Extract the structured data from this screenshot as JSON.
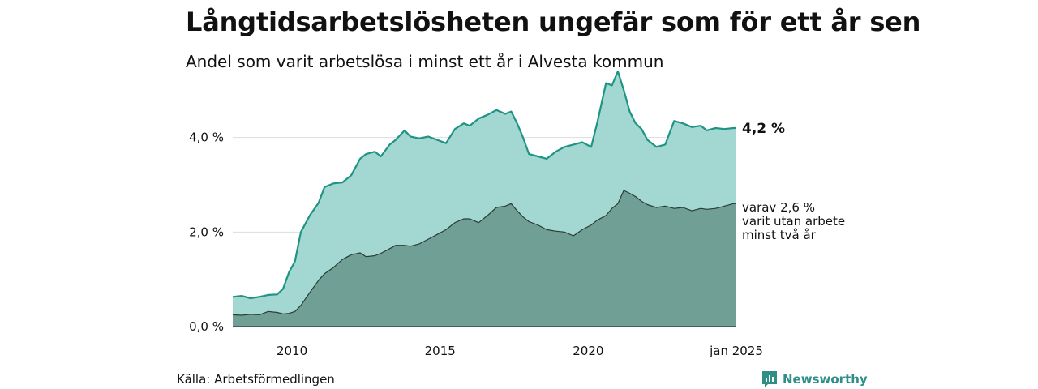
{
  "title": "Långtidsarbetslösheten ungefär som för ett år sen",
  "subtitle": "Andel som varit arbetslösa i minst ett år i Alvesta kommun",
  "source": "Källa: Arbetsförmedlingen",
  "logo": {
    "text": "Newsworthy",
    "icon": "newsworthy-chart-icon"
  },
  "colors": {
    "total_line": "#1f9485",
    "total_fill": "#a3d8d2",
    "sub_fill": "#6f9f95",
    "sub_line": "#2b3b35",
    "grid": "#dddddd",
    "brand": "#2f8f86"
  },
  "chart_data": {
    "type": "area",
    "title": "Långtidsarbetslösheten ungefär som för ett år sen",
    "subtitle": "Andel som varit arbetslösa i minst ett år i Alvesta kommun",
    "xlabel": "",
    "ylabel": "",
    "xlim": [
      2008.0,
      2025.0
    ],
    "ylim": [
      0,
      5.4
    ],
    "grid": true,
    "y_ticks": [
      {
        "value": 0,
        "label": "0,0 %"
      },
      {
        "value": 2,
        "label": "2,0 %"
      },
      {
        "value": 4,
        "label": "4,0 %"
      }
    ],
    "x_ticks": [
      {
        "value": 2010.0,
        "label": "2010"
      },
      {
        "value": 2015.0,
        "label": "2015"
      },
      {
        "value": 2020.0,
        "label": "2020"
      },
      {
        "value": 2025.0,
        "label": "jan 2025"
      }
    ],
    "annotations": {
      "total_end_label": "4,2 %",
      "sub_end_lines": [
        "varav 2,6 %",
        "varit utan arbete",
        "minst två år"
      ]
    },
    "series": [
      {
        "key": "total",
        "x": [
          2008.0,
          2008.3,
          2008.6,
          2008.9,
          2009.2,
          2009.5,
          2009.7,
          2009.9,
          2010.1,
          2010.3,
          2010.6,
          2010.9,
          2011.1,
          2011.4,
          2011.7,
          2012.0,
          2012.3,
          2012.5,
          2012.8,
          2013.0,
          2013.3,
          2013.5,
          2013.8,
          2014.0,
          2014.3,
          2014.6,
          2014.9,
          2015.2,
          2015.5,
          2015.8,
          2016.0,
          2016.3,
          2016.6,
          2016.9,
          2017.2,
          2017.4,
          2017.6,
          2017.8,
          2018.0,
          2018.3,
          2018.6,
          2018.9,
          2019.2,
          2019.5,
          2019.8,
          2020.1,
          2020.3,
          2020.6,
          2020.8,
          2021.0,
          2021.2,
          2021.4,
          2021.6,
          2021.8,
          2022.0,
          2022.3,
          2022.6,
          2022.9,
          2023.2,
          2023.5,
          2023.8,
          2024.0,
          2024.3,
          2024.6,
          2024.9,
          2025.0
        ],
        "values": [
          0.63,
          0.65,
          0.6,
          0.63,
          0.67,
          0.68,
          0.8,
          1.15,
          1.38,
          2.0,
          2.35,
          2.62,
          2.95,
          3.03,
          3.05,
          3.2,
          3.55,
          3.65,
          3.7,
          3.6,
          3.85,
          3.95,
          4.15,
          4.02,
          3.98,
          4.02,
          3.95,
          3.88,
          4.18,
          4.3,
          4.25,
          4.4,
          4.48,
          4.58,
          4.5,
          4.55,
          4.3,
          4.0,
          3.65,
          3.6,
          3.55,
          3.7,
          3.8,
          3.85,
          3.9,
          3.8,
          4.3,
          5.15,
          5.1,
          5.4,
          5.0,
          4.55,
          4.3,
          4.18,
          3.95,
          3.8,
          3.85,
          4.35,
          4.3,
          4.22,
          4.25,
          4.15,
          4.2,
          4.18,
          4.2,
          4.2
        ]
      },
      {
        "key": "sub",
        "x": [
          2008.0,
          2008.3,
          2008.6,
          2008.9,
          2009.2,
          2009.5,
          2009.7,
          2009.9,
          2010.1,
          2010.3,
          2010.6,
          2010.9,
          2011.1,
          2011.4,
          2011.7,
          2012.0,
          2012.3,
          2012.5,
          2012.8,
          2013.0,
          2013.3,
          2013.5,
          2013.8,
          2014.0,
          2014.3,
          2014.6,
          2014.9,
          2015.2,
          2015.5,
          2015.8,
          2016.0,
          2016.3,
          2016.6,
          2016.9,
          2017.2,
          2017.4,
          2017.6,
          2017.8,
          2018.0,
          2018.3,
          2018.6,
          2018.9,
          2019.2,
          2019.5,
          2019.8,
          2020.1,
          2020.3,
          2020.6,
          2020.8,
          2021.0,
          2021.2,
          2021.4,
          2021.6,
          2021.8,
          2022.0,
          2022.3,
          2022.6,
          2022.9,
          2023.2,
          2023.5,
          2023.8,
          2024.0,
          2024.3,
          2024.6,
          2024.9,
          2025.0
        ],
        "values": [
          0.25,
          0.24,
          0.26,
          0.25,
          0.32,
          0.3,
          0.27,
          0.28,
          0.32,
          0.45,
          0.72,
          0.98,
          1.12,
          1.25,
          1.42,
          1.52,
          1.56,
          1.48,
          1.5,
          1.55,
          1.65,
          1.72,
          1.72,
          1.7,
          1.75,
          1.85,
          1.95,
          2.05,
          2.2,
          2.28,
          2.28,
          2.2,
          2.35,
          2.52,
          2.55,
          2.6,
          2.45,
          2.32,
          2.22,
          2.15,
          2.05,
          2.02,
          2.0,
          1.92,
          2.05,
          2.15,
          2.25,
          2.35,
          2.5,
          2.6,
          2.88,
          2.82,
          2.75,
          2.65,
          2.58,
          2.52,
          2.55,
          2.5,
          2.52,
          2.45,
          2.5,
          2.48,
          2.5,
          2.55,
          2.6,
          2.6
        ]
      }
    ]
  }
}
